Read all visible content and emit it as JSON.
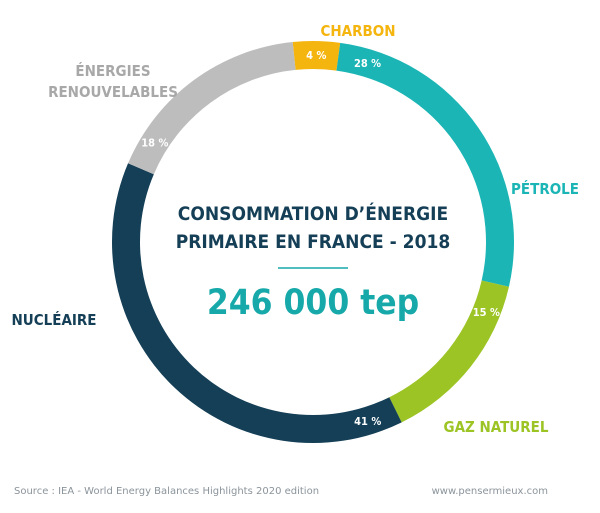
{
  "chart_data": {
    "type": "pie",
    "title_lines": [
      "CONSOMMATION D’ÉNERGIE",
      "PRIMAIRE EN FRANCE - 2018"
    ],
    "total": "246 000 tep",
    "slices": [
      {
        "name": "CHARBON",
        "name_lines": [
          "CHARBON"
        ],
        "value": 4,
        "label": "4 %",
        "color": "#f5b50f"
      },
      {
        "name": "PÉTROLE",
        "name_lines": [
          "PÉTROLE"
        ],
        "value": 28,
        "label": "28 %",
        "color": "#1bb5b5"
      },
      {
        "name": "GAZ NATUREL",
        "name_lines": [
          "GAZ NATUREL"
        ],
        "value": 15,
        "label": "15 %",
        "color": "#9cc424"
      },
      {
        "name": "NUCLÉAIRE",
        "name_lines": [
          "NUCLÉAIRE"
        ],
        "value": 41,
        "label": "41 %",
        "color": "#143f56"
      },
      {
        "name": "ÉNERGIES RENOUVELABLES",
        "name_lines": [
          "ÉNERGIES",
          "RENOUVELABLES"
        ],
        "value": 18,
        "label": "18 %",
        "color": "#bdbdbd"
      }
    ],
    "colors": {
      "title": "#153f56",
      "total": "#17a9a9",
      "divider": "#17a9a9",
      "footer": "#8b949b"
    }
  },
  "footer": {
    "source": "Source : IEA - World Energy Balances Highlights 2020 edition",
    "website": "www.pensermieux.com"
  }
}
